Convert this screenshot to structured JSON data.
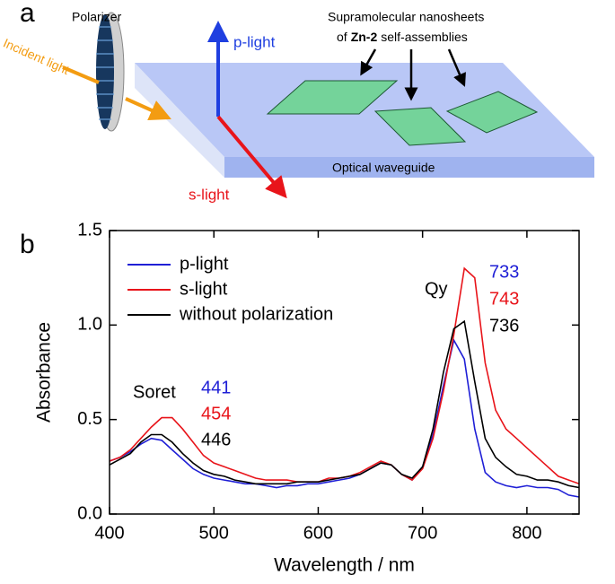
{
  "panel_a": {
    "label": "a",
    "polarizer": "Polarizer",
    "incident": "Incident light",
    "p_light": "p-light",
    "s_light": "s-light",
    "nanosheets_line1": "Supramolecular nanosheets",
    "nanosheets_of": "of",
    "nanosheets_bold": "Zn-2",
    "nanosheets_rest": "self-assemblies",
    "waveguide": "Optical waveguide"
  },
  "chart_data": {
    "type": "line",
    "panel_label": "b",
    "xlabel": "Wavelength / nm",
    "ylabel": "Absorbance",
    "xlim": [
      400,
      850
    ],
    "ylim": [
      0,
      1.5
    ],
    "xticks": [
      400,
      500,
      600,
      700,
      800
    ],
    "yticks": [
      {
        "value": 0,
        "label": "0.0"
      },
      {
        "value": 0.5,
        "label": "0.5"
      },
      {
        "value": 1,
        "label": "1.0"
      },
      {
        "value": 1.5,
        "label": "1.5"
      }
    ],
    "legend": "upper left",
    "x": [
      400,
      410,
      420,
      430,
      440,
      450,
      460,
      470,
      480,
      490,
      500,
      510,
      520,
      530,
      540,
      550,
      560,
      570,
      580,
      590,
      600,
      610,
      620,
      630,
      640,
      650,
      660,
      670,
      680,
      690,
      700,
      710,
      720,
      730,
      740,
      750,
      760,
      770,
      780,
      790,
      800,
      810,
      820,
      830,
      840,
      850
    ],
    "series": [
      {
        "name": "p-light",
        "color": "#1f1fd6",
        "values": [
          0.28,
          0.3,
          0.33,
          0.37,
          0.4,
          0.39,
          0.34,
          0.29,
          0.24,
          0.21,
          0.19,
          0.18,
          0.17,
          0.16,
          0.16,
          0.15,
          0.14,
          0.15,
          0.15,
          0.16,
          0.16,
          0.17,
          0.18,
          0.19,
          0.21,
          0.24,
          0.27,
          0.26,
          0.21,
          0.18,
          0.25,
          0.42,
          0.68,
          0.92,
          0.82,
          0.45,
          0.22,
          0.17,
          0.15,
          0.14,
          0.15,
          0.14,
          0.14,
          0.13,
          0.1,
          0.09
        ]
      },
      {
        "name": "s-light",
        "color": "#e8141a",
        "values": [
          0.28,
          0.3,
          0.34,
          0.4,
          0.46,
          0.51,
          0.51,
          0.45,
          0.38,
          0.31,
          0.27,
          0.25,
          0.23,
          0.21,
          0.19,
          0.18,
          0.18,
          0.18,
          0.17,
          0.17,
          0.17,
          0.19,
          0.19,
          0.2,
          0.22,
          0.25,
          0.28,
          0.26,
          0.21,
          0.18,
          0.24,
          0.4,
          0.65,
          0.95,
          1.3,
          1.25,
          0.8,
          0.55,
          0.45,
          0.4,
          0.35,
          0.3,
          0.25,
          0.2,
          0.18,
          0.16
        ]
      },
      {
        "name": "without polarization",
        "color": "#000000",
        "values": [
          0.26,
          0.29,
          0.32,
          0.38,
          0.42,
          0.42,
          0.38,
          0.32,
          0.27,
          0.23,
          0.21,
          0.2,
          0.18,
          0.17,
          0.16,
          0.16,
          0.16,
          0.16,
          0.17,
          0.17,
          0.17,
          0.18,
          0.19,
          0.2,
          0.21,
          0.24,
          0.27,
          0.26,
          0.21,
          0.19,
          0.25,
          0.45,
          0.75,
          0.98,
          1.02,
          0.7,
          0.4,
          0.3,
          0.25,
          0.21,
          0.2,
          0.18,
          0.18,
          0.17,
          0.15,
          0.14
        ]
      }
    ],
    "annotations": [
      {
        "text": "Soret",
        "color": "#000000"
      },
      {
        "text": "441",
        "color": "#1f1fd6"
      },
      {
        "text": "454",
        "color": "#e8141a"
      },
      {
        "text": "446",
        "color": "#000000"
      },
      {
        "text": "Qy",
        "color": "#000000"
      },
      {
        "text": "733",
        "color": "#1f1fd6"
      },
      {
        "text": "743",
        "color": "#e8141a"
      },
      {
        "text": "736",
        "color": "#000000"
      }
    ]
  }
}
